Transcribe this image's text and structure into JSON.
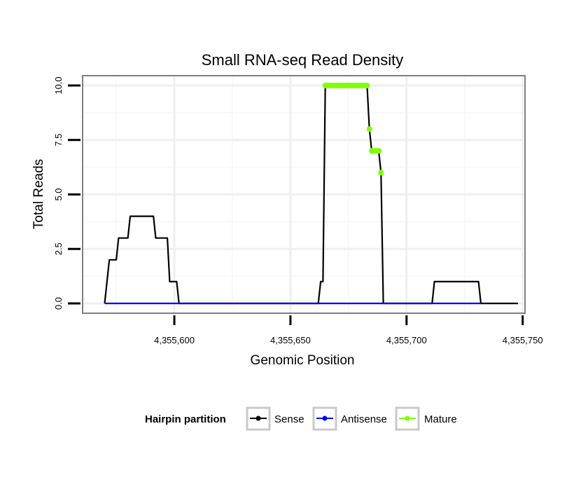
{
  "chart_data": {
    "type": "line",
    "title": "Small RNA-seq Read Density",
    "xlabel": "Genomic Position",
    "ylabel": "Total Reads",
    "xlim": [
      4355560.5,
      4355751.0
    ],
    "ylim": [
      -0.45,
      10.45
    ],
    "x_ticks": [
      4355600,
      4355650,
      4355700,
      4355750
    ],
    "x_tick_labels": [
      "4,355,600",
      "4,355,650",
      "4,355,700",
      "4,355,750"
    ],
    "y_ticks": [
      0,
      2.5,
      5,
      7.5,
      10
    ],
    "y_tick_labels": [
      "0.0",
      "2.5",
      "5.0",
      "7.5",
      "10.0"
    ],
    "grid": true,
    "legend": {
      "title": "Hairpin partition",
      "position": "bottom",
      "entries": [
        "Sense",
        "Antisense",
        "Mature"
      ]
    },
    "series": [
      {
        "name": "Sense",
        "color": "#000000",
        "points": [
          [
            4355570,
            0
          ],
          [
            4355572,
            2
          ],
          [
            4355575,
            2
          ],
          [
            4355576,
            3
          ],
          [
            4355580,
            3
          ],
          [
            4355581,
            4
          ],
          [
            4355591,
            4
          ],
          [
            4355592,
            3
          ],
          [
            4355597,
            3
          ],
          [
            4355598,
            1
          ],
          [
            4355601,
            1
          ],
          [
            4355602,
            0
          ],
          [
            4355662,
            0
          ],
          [
            4355663,
            1
          ],
          [
            4355664,
            1
          ],
          [
            4355665,
            10
          ],
          [
            4355683,
            10
          ],
          [
            4355684,
            8
          ],
          [
            4355685,
            7
          ],
          [
            4355688,
            7
          ],
          [
            4355689,
            6
          ],
          [
            4355690,
            0
          ],
          [
            4355711,
            0
          ],
          [
            4355712,
            1
          ],
          [
            4355731,
            1
          ],
          [
            4355732,
            0
          ],
          [
            4355748,
            0
          ]
        ]
      },
      {
        "name": "Antisense",
        "color": "#0000ff",
        "points": [
          [
            4355570,
            0
          ],
          [
            4355602,
            0
          ],
          [
            4355662,
            0
          ],
          [
            4355732,
            0
          ]
        ]
      },
      {
        "name": "Mature",
        "color": "#7fff00",
        "points": [
          [
            4355665,
            10
          ],
          [
            4355666,
            10
          ],
          [
            4355667,
            10
          ],
          [
            4355668,
            10
          ],
          [
            4355669,
            10
          ],
          [
            4355670,
            10
          ],
          [
            4355671,
            10
          ],
          [
            4355672,
            10
          ],
          [
            4355673,
            10
          ],
          [
            4355674,
            10
          ],
          [
            4355675,
            10
          ],
          [
            4355676,
            10
          ],
          [
            4355677,
            10
          ],
          [
            4355678,
            10
          ],
          [
            4355679,
            10
          ],
          [
            4355680,
            10
          ],
          [
            4355681,
            10
          ],
          [
            4355682,
            10
          ],
          [
            4355683,
            10
          ],
          [
            4355684,
            8
          ],
          [
            4355685,
            7
          ],
          [
            4355686,
            7
          ],
          [
            4355687,
            7
          ],
          [
            4355688,
            7
          ],
          [
            4355689,
            6
          ]
        ]
      }
    ]
  }
}
